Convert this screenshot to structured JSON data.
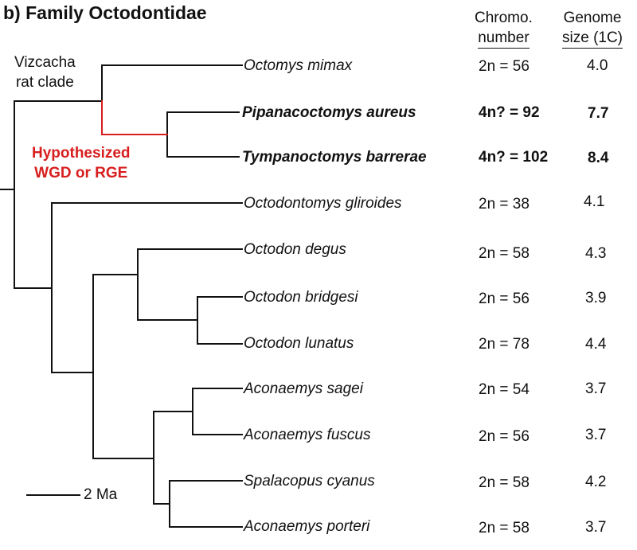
{
  "title": "b) Family Octodontidae",
  "columns": {
    "chromo_line1": "Chromo.",
    "chromo_line2": "number",
    "genome_line1": "Genome",
    "genome_line2": "size (1C)"
  },
  "clade_label": {
    "line1": "Vizcacha",
    "line2": "rat clade"
  },
  "hypothesis_label": {
    "line1": "Hypothesized",
    "line2": "WGD or RGE",
    "color": "#d81e1e"
  },
  "scale_bar_label": "2 Ma",
  "taxa": [
    {
      "species": "Octomys mimax",
      "chromosomes": "2n = 56",
      "genome_size": "4.0",
      "bold": false
    },
    {
      "species": "Pipanacoctomys aureus",
      "chromosomes": "4n? = 92",
      "genome_size": "7.7",
      "bold": true
    },
    {
      "species": "Tympanoctomys barrerae",
      "chromosomes": "4n? = 102",
      "genome_size": "8.4",
      "bold": true
    },
    {
      "species": "Octodontomys gliroides",
      "chromosomes": "2n = 38",
      "genome_size": "4.1",
      "bold": false
    },
    {
      "species": "Octodon degus",
      "chromosomes": "2n = 58",
      "genome_size": "4.3",
      "bold": false
    },
    {
      "species": "Octodon bridgesi",
      "chromosomes": "2n = 56",
      "genome_size": "3.9",
      "bold": false
    },
    {
      "species": "Octodon lunatus",
      "chromosomes": "2n = 78",
      "genome_size": "4.4",
      "bold": false
    },
    {
      "species": "Aconaemys sagei",
      "chromosomes": "2n = 54",
      "genome_size": "3.7",
      "bold": false
    },
    {
      "species": "Aconaemys fuscus",
      "chromosomes": "2n = 56",
      "genome_size": "3.7",
      "bold": false
    },
    {
      "species": "Spalacopus cyanus",
      "chromosomes": "2n = 58",
      "genome_size": "4.2",
      "bold": false
    },
    {
      "species": "Aconaemys porteri",
      "chromosomes": "2n = 58",
      "genome_size": "3.7",
      "bold": false
    }
  ]
}
